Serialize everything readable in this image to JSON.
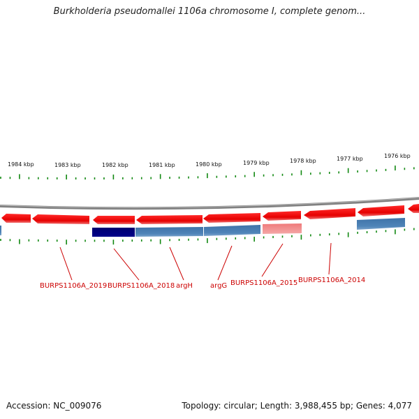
{
  "header": {
    "title": "Burkholderia pseudomallei 1106a chromosome I, complete genom..."
  },
  "footer": {
    "accession": "Accession: NC_009076",
    "summary": "Topology: circular; Length: 3,988,455 bp; Genes: 4,077"
  },
  "colors": {
    "forward_gene": "#ff0000",
    "reverse_gene": "#4a7fb0",
    "selected_gene": "#00007a",
    "pseudo_gene": "#f08080",
    "backbone": "#808080",
    "tick": "#118811",
    "label": "#cc0000"
  },
  "scale": {
    "unit": "kbp",
    "labels": [
      "1984 kbp",
      "1983 kbp",
      "1982 kbp",
      "1981 kbp",
      "1980 kbp",
      "1979 kbp",
      "1978 kbp",
      "1977 kbp",
      "1976 kbp"
    ]
  },
  "gene_labels": [
    "BURPS1106A_2019",
    "BURPS1106A_2018",
    "argH",
    "argG",
    "BURPS1106A_2015",
    "BURPS1106A_2014"
  ]
}
